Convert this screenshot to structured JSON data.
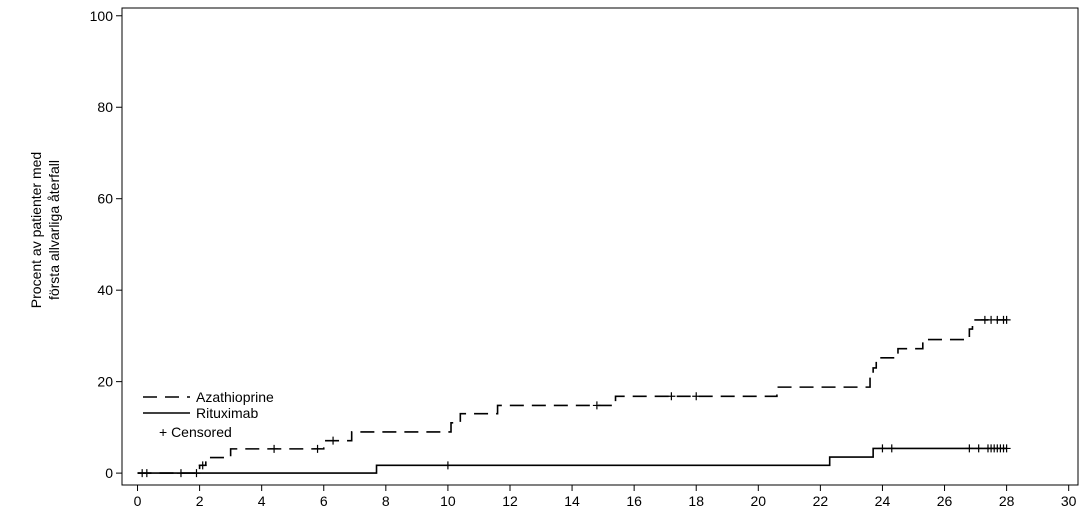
{
  "chart_data": {
    "type": "step",
    "ylabel": [
      "Procent av patienter med",
      "första allvarliga återfall"
    ],
    "xlim": [
      -0.5,
      30.3
    ],
    "ylim": [
      -2.6,
      101.7
    ],
    "xticks": [
      0,
      2,
      4,
      6,
      8,
      10,
      12,
      14,
      16,
      18,
      20,
      22,
      24,
      26,
      28,
      30
    ],
    "yticks": [
      0,
      20,
      40,
      60,
      80,
      100
    ],
    "censored_label": "+ Censored",
    "series": [
      {
        "name": "Azathioprine",
        "color": "#000000",
        "dash": true,
        "x": [
          0,
          2.0,
          2.2,
          3.0,
          6.0,
          6.9,
          10.1,
          10.4,
          11.6,
          15.4,
          20.6,
          23.6,
          23.7,
          23.8,
          24.5,
          25.3,
          26.8,
          26.9,
          28.0
        ],
        "values": [
          0,
          1.7,
          3.4,
          5.3,
          7.1,
          9.0,
          11.0,
          13.0,
          14.8,
          16.8,
          18.8,
          21.0,
          23.0,
          25.2,
          27.2,
          29.2,
          31.5,
          33.5,
          33.5
        ],
        "censored_x": [
          2.1,
          4.4,
          5.8,
          6.3,
          14.8,
          17.2,
          18.0,
          27.3,
          27.5,
          27.7,
          27.9,
          28.0
        ],
        "censored_y": [
          1.7,
          5.3,
          5.3,
          7.1,
          14.8,
          16.8,
          16.8,
          33.5,
          33.5,
          33.5,
          33.5,
          33.5
        ]
      },
      {
        "name": "Rituximab",
        "color": "#000000",
        "dash": false,
        "x": [
          0,
          7.7,
          22.3,
          23.7,
          28.0
        ],
        "values": [
          0,
          1.7,
          3.5,
          5.4,
          5.4
        ],
        "censored_x": [
          0.15,
          0.3,
          1.4,
          1.9,
          10.0,
          24.0,
          24.3,
          26.8,
          27.1,
          27.4,
          27.5,
          27.6,
          27.7,
          27.8,
          27.9,
          28.0
        ],
        "censored_y": [
          0,
          0,
          0,
          0,
          1.7,
          5.4,
          5.4,
          5.4,
          5.4,
          5.4,
          5.4,
          5.4,
          5.4,
          5.4,
          5.4,
          5.4
        ]
      }
    ]
  }
}
